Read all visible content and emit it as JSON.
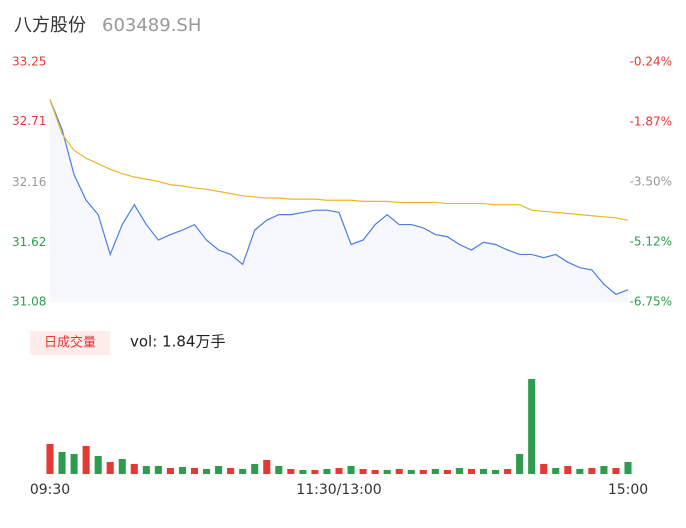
{
  "chart_data": {
    "type": "line",
    "title": "八方股份",
    "subtitle": "603489.SH",
    "ylim": [
      31.08,
      33.25
    ],
    "yticks": [
      33.25,
      32.71,
      32.16,
      31.62,
      31.08
    ],
    "ytick_colors": [
      "#e53935",
      "#e53935",
      "#999999",
      "#2e9c4e",
      "#2e9c4e"
    ],
    "y2lim": [
      -6.75,
      -0.24
    ],
    "y2ticks": [
      {
        "value": -0.24,
        "label": "-0.24%"
      },
      {
        "value": -1.87,
        "label": "-1.87%"
      },
      {
        "value": -3.5,
        "label": "-3.50%"
      },
      {
        "value": -5.12,
        "label": "-5.12%"
      },
      {
        "value": -6.75,
        "label": "-6.75%"
      }
    ],
    "xlim": [
      0,
      48
    ],
    "xticks": [
      {
        "value": 0,
        "label": "09:30"
      },
      {
        "value": 24,
        "label": "11:30/13:00"
      },
      {
        "value": 48,
        "label": "15:00"
      }
    ],
    "series": [
      {
        "color": "#4a7fe0",
        "values": [
          32.91,
          32.64,
          32.23,
          32.0,
          31.87,
          31.51,
          31.78,
          31.96,
          31.78,
          31.64,
          31.69,
          31.73,
          31.78,
          31.64,
          31.55,
          31.51,
          31.42,
          31.73,
          31.82,
          31.87,
          31.87,
          31.89,
          31.91,
          31.91,
          31.89,
          31.6,
          31.64,
          31.78,
          31.87,
          31.78,
          31.78,
          31.75,
          31.69,
          31.67,
          31.6,
          31.55,
          31.62,
          31.6,
          31.55,
          31.51,
          31.51,
          31.48,
          31.51,
          31.44,
          31.39,
          31.37,
          31.24,
          31.15,
          31.19
        ]
      },
      {
        "color": "#f0b429",
        "values": [
          32.91,
          32.6,
          32.45,
          32.38,
          32.33,
          32.28,
          32.24,
          32.21,
          32.19,
          32.17,
          32.14,
          32.13,
          32.11,
          32.1,
          32.08,
          32.06,
          32.04,
          32.03,
          32.02,
          32.02,
          32.01,
          32.01,
          32.01,
          32.0,
          32.0,
          32.0,
          31.99,
          31.99,
          31.99,
          31.98,
          31.98,
          31.98,
          31.98,
          31.97,
          31.97,
          31.97,
          31.97,
          31.96,
          31.96,
          31.96,
          31.91,
          31.9,
          31.89,
          31.88,
          31.87,
          31.86,
          31.85,
          31.84,
          31.82
        ]
      }
    ],
    "volume": {
      "label": "日成交量",
      "text": "vol: 1.84万手",
      "ylim": [
        0,
        100
      ],
      "values": [
        30,
        22,
        20,
        28,
        18,
        12,
        15,
        10,
        8,
        8,
        6,
        7,
        6,
        5,
        8,
        6,
        5,
        10,
        14,
        8,
        5,
        4,
        4,
        5,
        6,
        8,
        5,
        4,
        4,
        5,
        4,
        4,
        5,
        4,
        6,
        5,
        5,
        4,
        5,
        20,
        95,
        10,
        6,
        8,
        5,
        6,
        8,
        6,
        12
      ],
      "colors": [
        "#e53935",
        "#2e9c4e",
        "#2e9c4e",
        "#e53935",
        "#2e9c4e",
        "#e53935",
        "#2e9c4e",
        "#e53935",
        "#2e9c4e",
        "#2e9c4e",
        "#e53935",
        "#2e9c4e",
        "#e53935",
        "#2e9c4e",
        "#2e9c4e",
        "#e53935",
        "#2e9c4e",
        "#2e9c4e",
        "#e53935",
        "#2e9c4e",
        "#e53935",
        "#2e9c4e",
        "#e53935",
        "#2e9c4e",
        "#e53935",
        "#2e9c4e",
        "#e53935",
        "#e53935",
        "#2e9c4e",
        "#e53935",
        "#2e9c4e",
        "#e53935",
        "#2e9c4e",
        "#e53935",
        "#2e9c4e",
        "#e53935",
        "#2e9c4e",
        "#2e9c4e",
        "#e53935",
        "#2e9c4e",
        "#2e9c4e",
        "#e53935",
        "#2e9c4e",
        "#e53935",
        "#2e9c4e",
        "#e53935",
        "#2e9c4e",
        "#e53935",
        "#2e9c4e"
      ]
    }
  }
}
